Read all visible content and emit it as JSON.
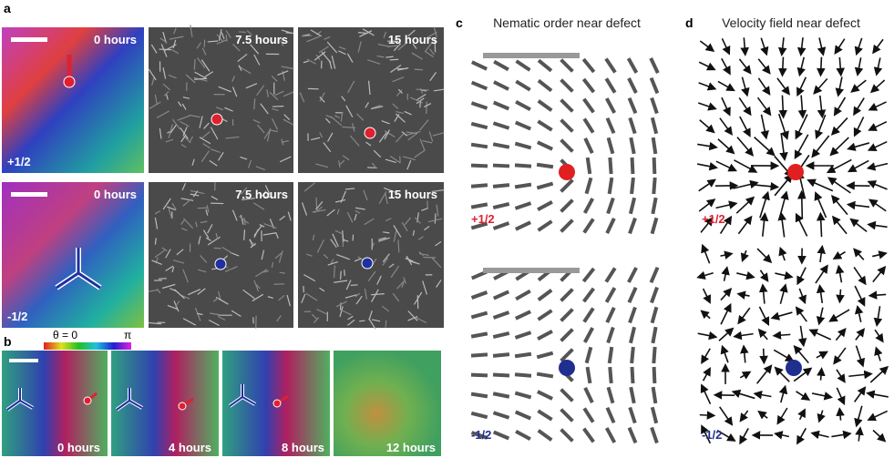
{
  "panel_a": {
    "label": "a",
    "rows": [
      {
        "charge": "+1/2",
        "times": [
          "0 hours",
          "7.5 hours",
          "15 hours"
        ]
      },
      {
        "charge": "-1/2",
        "times": [
          "0 hours",
          "7.5 hours",
          "15 hours"
        ]
      }
    ]
  },
  "panel_b": {
    "label": "b",
    "colorbar": {
      "start": "θ = 0",
      "end": "π"
    },
    "times": [
      "0 hours",
      "4 hours",
      "8 hours",
      "12 hours"
    ]
  },
  "panel_c": {
    "label": "c",
    "title": "Nematic order near defect",
    "charges": [
      "+1/2",
      "-1/2"
    ]
  },
  "panel_d": {
    "label": "d",
    "title": "Velocity field near defect",
    "charges": [
      "+1/2",
      "-1/2"
    ]
  }
}
